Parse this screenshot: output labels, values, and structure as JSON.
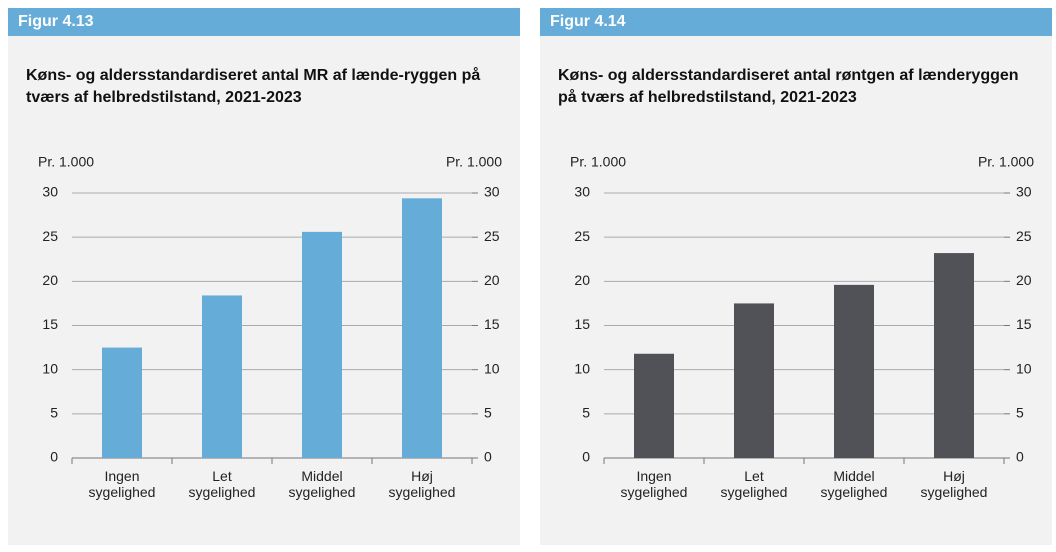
{
  "chart_data": [
    {
      "type": "bar",
      "label": "Figur 4.13",
      "title": "Køns- og aldersstandardiseret antal MR af lænde-ryggen på tværs af helbredstilstand, 2021-2023",
      "ylabel": "Pr. 1.000",
      "y2label": "Pr. 1.000",
      "categories": [
        "Ingen sygelighed",
        "Let sygelighed",
        "Middel sygelighed",
        "Høj sygelighed"
      ],
      "values": [
        12.5,
        18.4,
        25.6,
        29.4
      ],
      "color": "#65acd8",
      "ylim": [
        0,
        30
      ],
      "yticks": [
        0,
        5,
        10,
        15,
        20,
        25,
        30
      ],
      "y2lim": [
        0,
        30
      ],
      "y2ticks": [
        0,
        5,
        10,
        15,
        20,
        25,
        30
      ],
      "grid": true
    },
    {
      "type": "bar",
      "label": "Figur 4.14",
      "title": "Køns- og aldersstandardiseret antal røntgen af lænderyggen på tværs af helbredstilstand, 2021-2023",
      "ylabel": "Pr. 1.000",
      "y2label": "Pr. 1.000",
      "categories": [
        "Ingen sygelighed",
        "Let sygelighed",
        "Middel sygelighed",
        "Høj sygelighed"
      ],
      "values": [
        11.8,
        17.5,
        19.6,
        23.2
      ],
      "color": "#515257",
      "ylim": [
        0,
        30
      ],
      "yticks": [
        0,
        5,
        10,
        15,
        20,
        25,
        30
      ],
      "y2lim": [
        0,
        30
      ],
      "y2ticks": [
        0,
        5,
        10,
        15,
        20,
        25,
        30
      ],
      "grid": true
    }
  ]
}
